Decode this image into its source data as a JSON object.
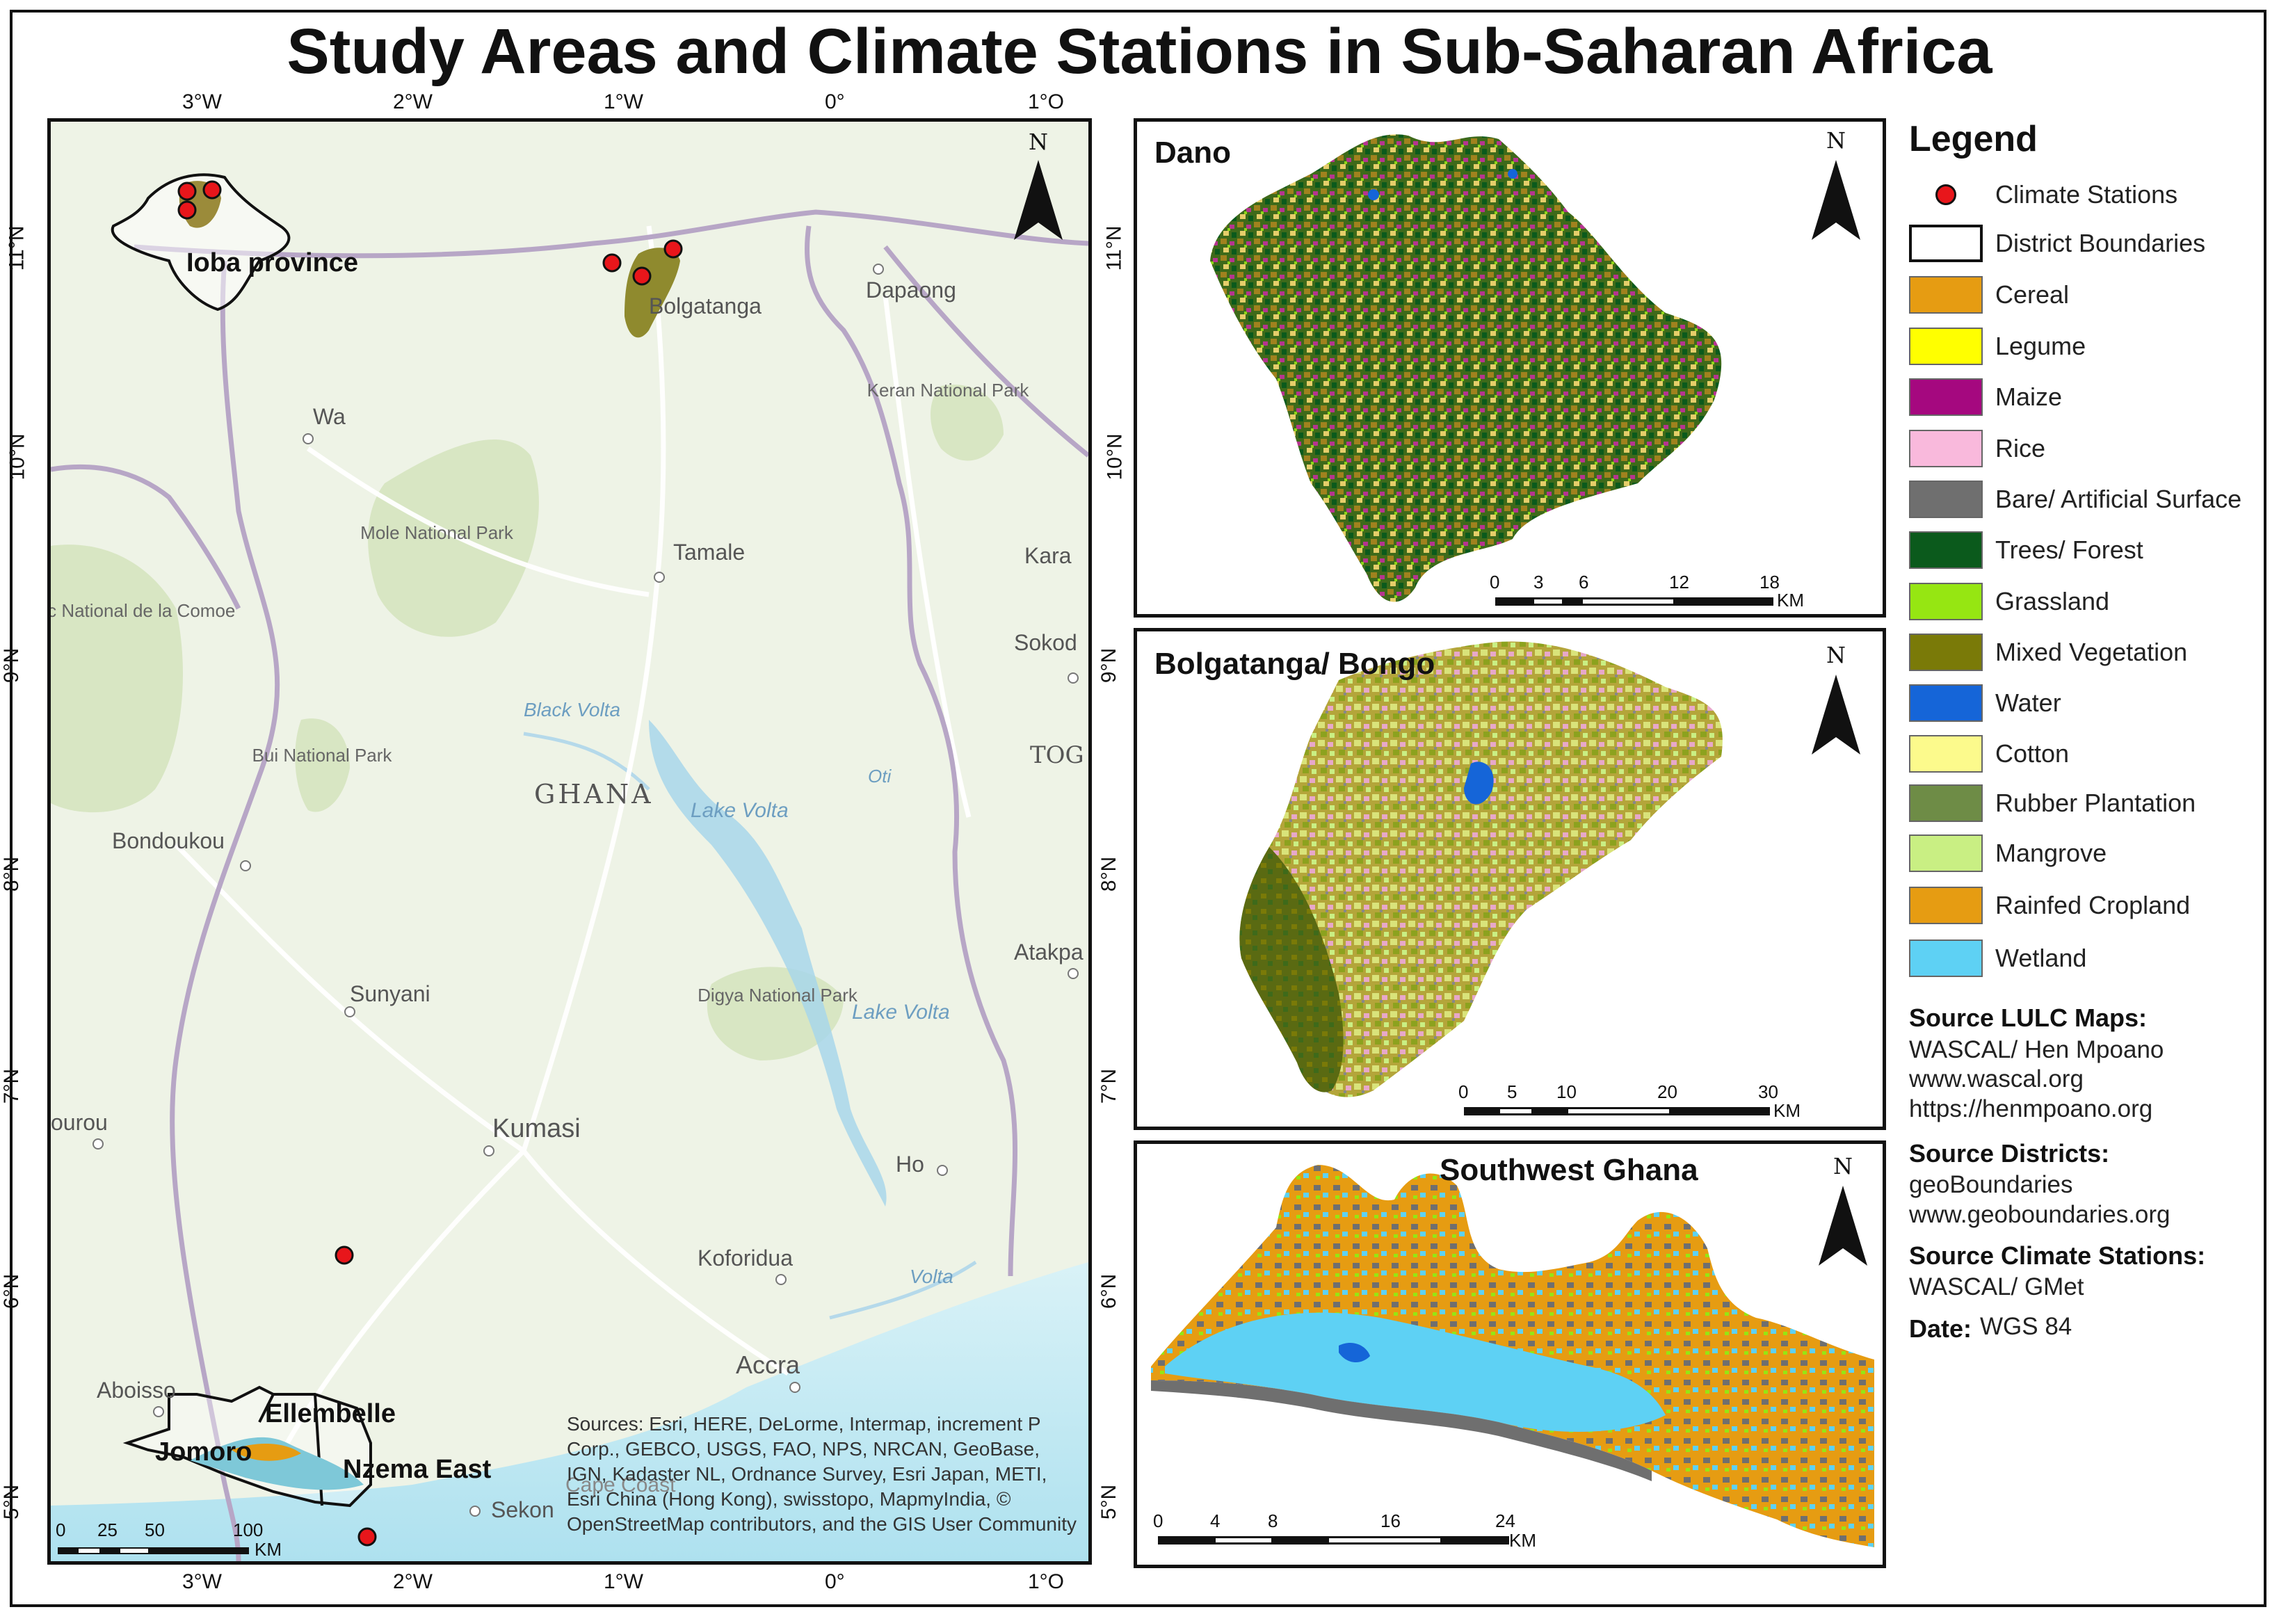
{
  "title": "Study Areas and Climate Stations in Sub-Saharan Africa",
  "main_map": {
    "graticule_top": [
      "3°W",
      "2°W",
      "1°W",
      "0°",
      "1°O"
    ],
    "graticule_bottom": [
      "3°W",
      "2°W",
      "1°W",
      "0°",
      "1°O"
    ],
    "graticule_left": [
      "11°N",
      "10°N",
      "9°N",
      "8°N",
      "7°N",
      "6°N",
      "5°N"
    ],
    "graticule_right": [
      "11°N",
      "10°N",
      "9°N",
      "8°N",
      "7°N",
      "6°N",
      "5°N"
    ],
    "places": {
      "bolgatanga": "Bolgatanga",
      "dapaong": "Dapaong",
      "wa": "Wa",
      "keran": "Keran National Park",
      "mole": "Mole National Park",
      "tamale": "Tamale",
      "kara": "Kara",
      "parc_comoe": "Parc National de la Comoe",
      "sokod": "Sokod",
      "black_volta": "Black Volta",
      "ghana": "GHANA",
      "lake_volta_1": "Lake Volta",
      "bui": "Bui National Park",
      "togo": "TOG",
      "oti": "Oti",
      "bondoukou": "Bondoukou",
      "atakpa": "Atakpa",
      "digya": "Digya National Park",
      "lake_volta_2": "Lake Volta",
      "sunyani": "Sunyani",
      "bourou": "ourou",
      "kumasi": "Kumasi",
      "ho": "Ho",
      "koforidua": "Koforidua",
      "volta": "Volta",
      "accra": "Accra",
      "aboisso": "Aboisso",
      "sekondi": "Sekon",
      "cape_coast": "Cape Coast"
    },
    "districts": {
      "ioba": "Ioba province",
      "ellembelle": "Ellembelle",
      "jomoro": "Jomoro",
      "nzema_east": "Nzema East"
    },
    "north_label": "N",
    "scale_labels": [
      "0",
      "25",
      "50",
      "100"
    ],
    "scale_unit": "KM",
    "sources_text": "Sources: Esri, HERE, DeLorme, Intermap, increment P Corp., GEBCO, USGS, FAO, NPS, NRCAN, GeoBase, IGN, Kadaster NL, Ordnance Survey, Esri Japan, METI, Esri China (Hong Kong), swisstopo, MapmyIndia, © OpenStreetMap contributors, and the GIS User Community"
  },
  "insets": [
    {
      "title": "Dano",
      "north_label": "N",
      "scale_labels": [
        "0",
        "3",
        "6",
        "12",
        "18"
      ],
      "scale_unit": "KM"
    },
    {
      "title": "Bolgatanga/ Bongo",
      "north_label": "N",
      "scale_labels": [
        "0",
        "5",
        "10",
        "20",
        "30"
      ],
      "scale_unit": "KM"
    },
    {
      "title": "Southwest Ghana",
      "north_label": "N",
      "scale_labels": [
        "0",
        "4",
        "8",
        "16",
        "24"
      ],
      "scale_unit": "KM"
    }
  ],
  "legend": {
    "title": "Legend",
    "items": [
      {
        "label": "Climate Stations",
        "color": "#e8161b",
        "kind": "point"
      },
      {
        "label": "District Boundaries",
        "color": "#ffffff",
        "kind": "outline"
      },
      {
        "label": "Cereal",
        "color": "#e69c12"
      },
      {
        "label": "Legume",
        "color": "#ffff00"
      },
      {
        "label": "Maize",
        "color": "#a5087f"
      },
      {
        "label": "Rice",
        "color": "#f9b9dc"
      },
      {
        "label": "Bare/ Artificial Surface",
        "color": "#6f6f6f"
      },
      {
        "label": "Trees/ Forest",
        "color": "#0b5a1c"
      },
      {
        "label": "Grassland",
        "color": "#96e612"
      },
      {
        "label": "Mixed Vegetation",
        "color": "#7a7a08"
      },
      {
        "label": "Water",
        "color": "#1565d8"
      },
      {
        "label": "Cotton",
        "color": "#fcfa8c"
      },
      {
        "label": "Rubber Plantation",
        "color": "#6e8c46"
      },
      {
        "label": "Mangrove",
        "color": "#c9ef83"
      },
      {
        "label": "Rainfed Cropland",
        "color": "#e69c12"
      },
      {
        "label": "Wetland",
        "color": "#5ed1f4"
      }
    ]
  },
  "sources": {
    "lulc_heading": "Source LULC Maps:",
    "lulc_lines": [
      "WASCAL/ Hen Mpoano",
      "www.wascal.org",
      "https://henmpoano.org"
    ],
    "districts_heading": "Source Districts:",
    "districts_lines": [
      "geoBoundaries",
      "www.geoboundaries.org"
    ],
    "climate_heading": "Source Climate Stations:",
    "climate_lines": [
      "WASCAL/ GMet"
    ],
    "date_heading": "Date:",
    "date_value": "WGS 84"
  }
}
